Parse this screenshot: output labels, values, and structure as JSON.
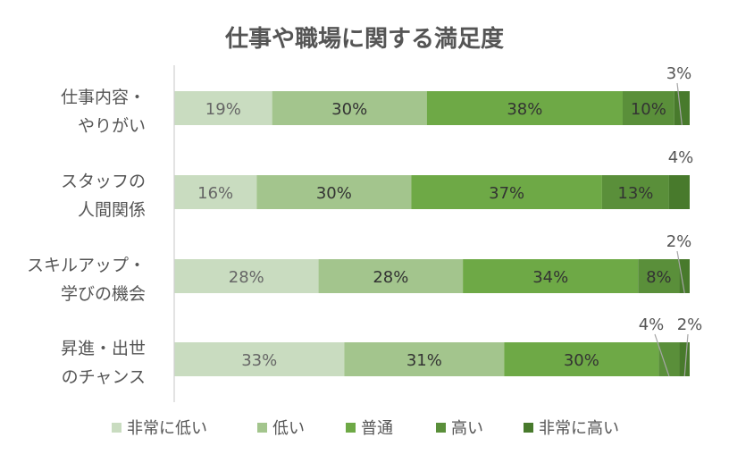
{
  "chart_data": {
    "type": "bar",
    "orientation": "horizontal",
    "stacked": "percent",
    "title": "仕事や職場に関する満足度",
    "categories": [
      [
        "仕事内容・",
        "やりがい"
      ],
      [
        "スタッフの",
        "人間関係"
      ],
      [
        "スキルアップ・",
        "学びの機会"
      ],
      [
        "昇進・出世",
        "のチャンス"
      ]
    ],
    "series": [
      {
        "name": "非常に低い",
        "color": "#c9dcc0",
        "values": [
          19,
          16,
          28,
          33
        ]
      },
      {
        "name": "低い",
        "color": "#a3c58d",
        "values": [
          30,
          30,
          28,
          31
        ]
      },
      {
        "name": "普通",
        "color": "#6ea946",
        "values": [
          38,
          37,
          34,
          30
        ]
      },
      {
        "name": "高い",
        "color": "#5a8f3a",
        "values": [
          10,
          13,
          8,
          4
        ]
      },
      {
        "name": "非常に高い",
        "color": "#487a2c",
        "values": [
          3,
          4,
          2,
          2
        ]
      }
    ],
    "xlim": [
      0,
      100
    ],
    "legend": "bottom",
    "grid": false
  }
}
